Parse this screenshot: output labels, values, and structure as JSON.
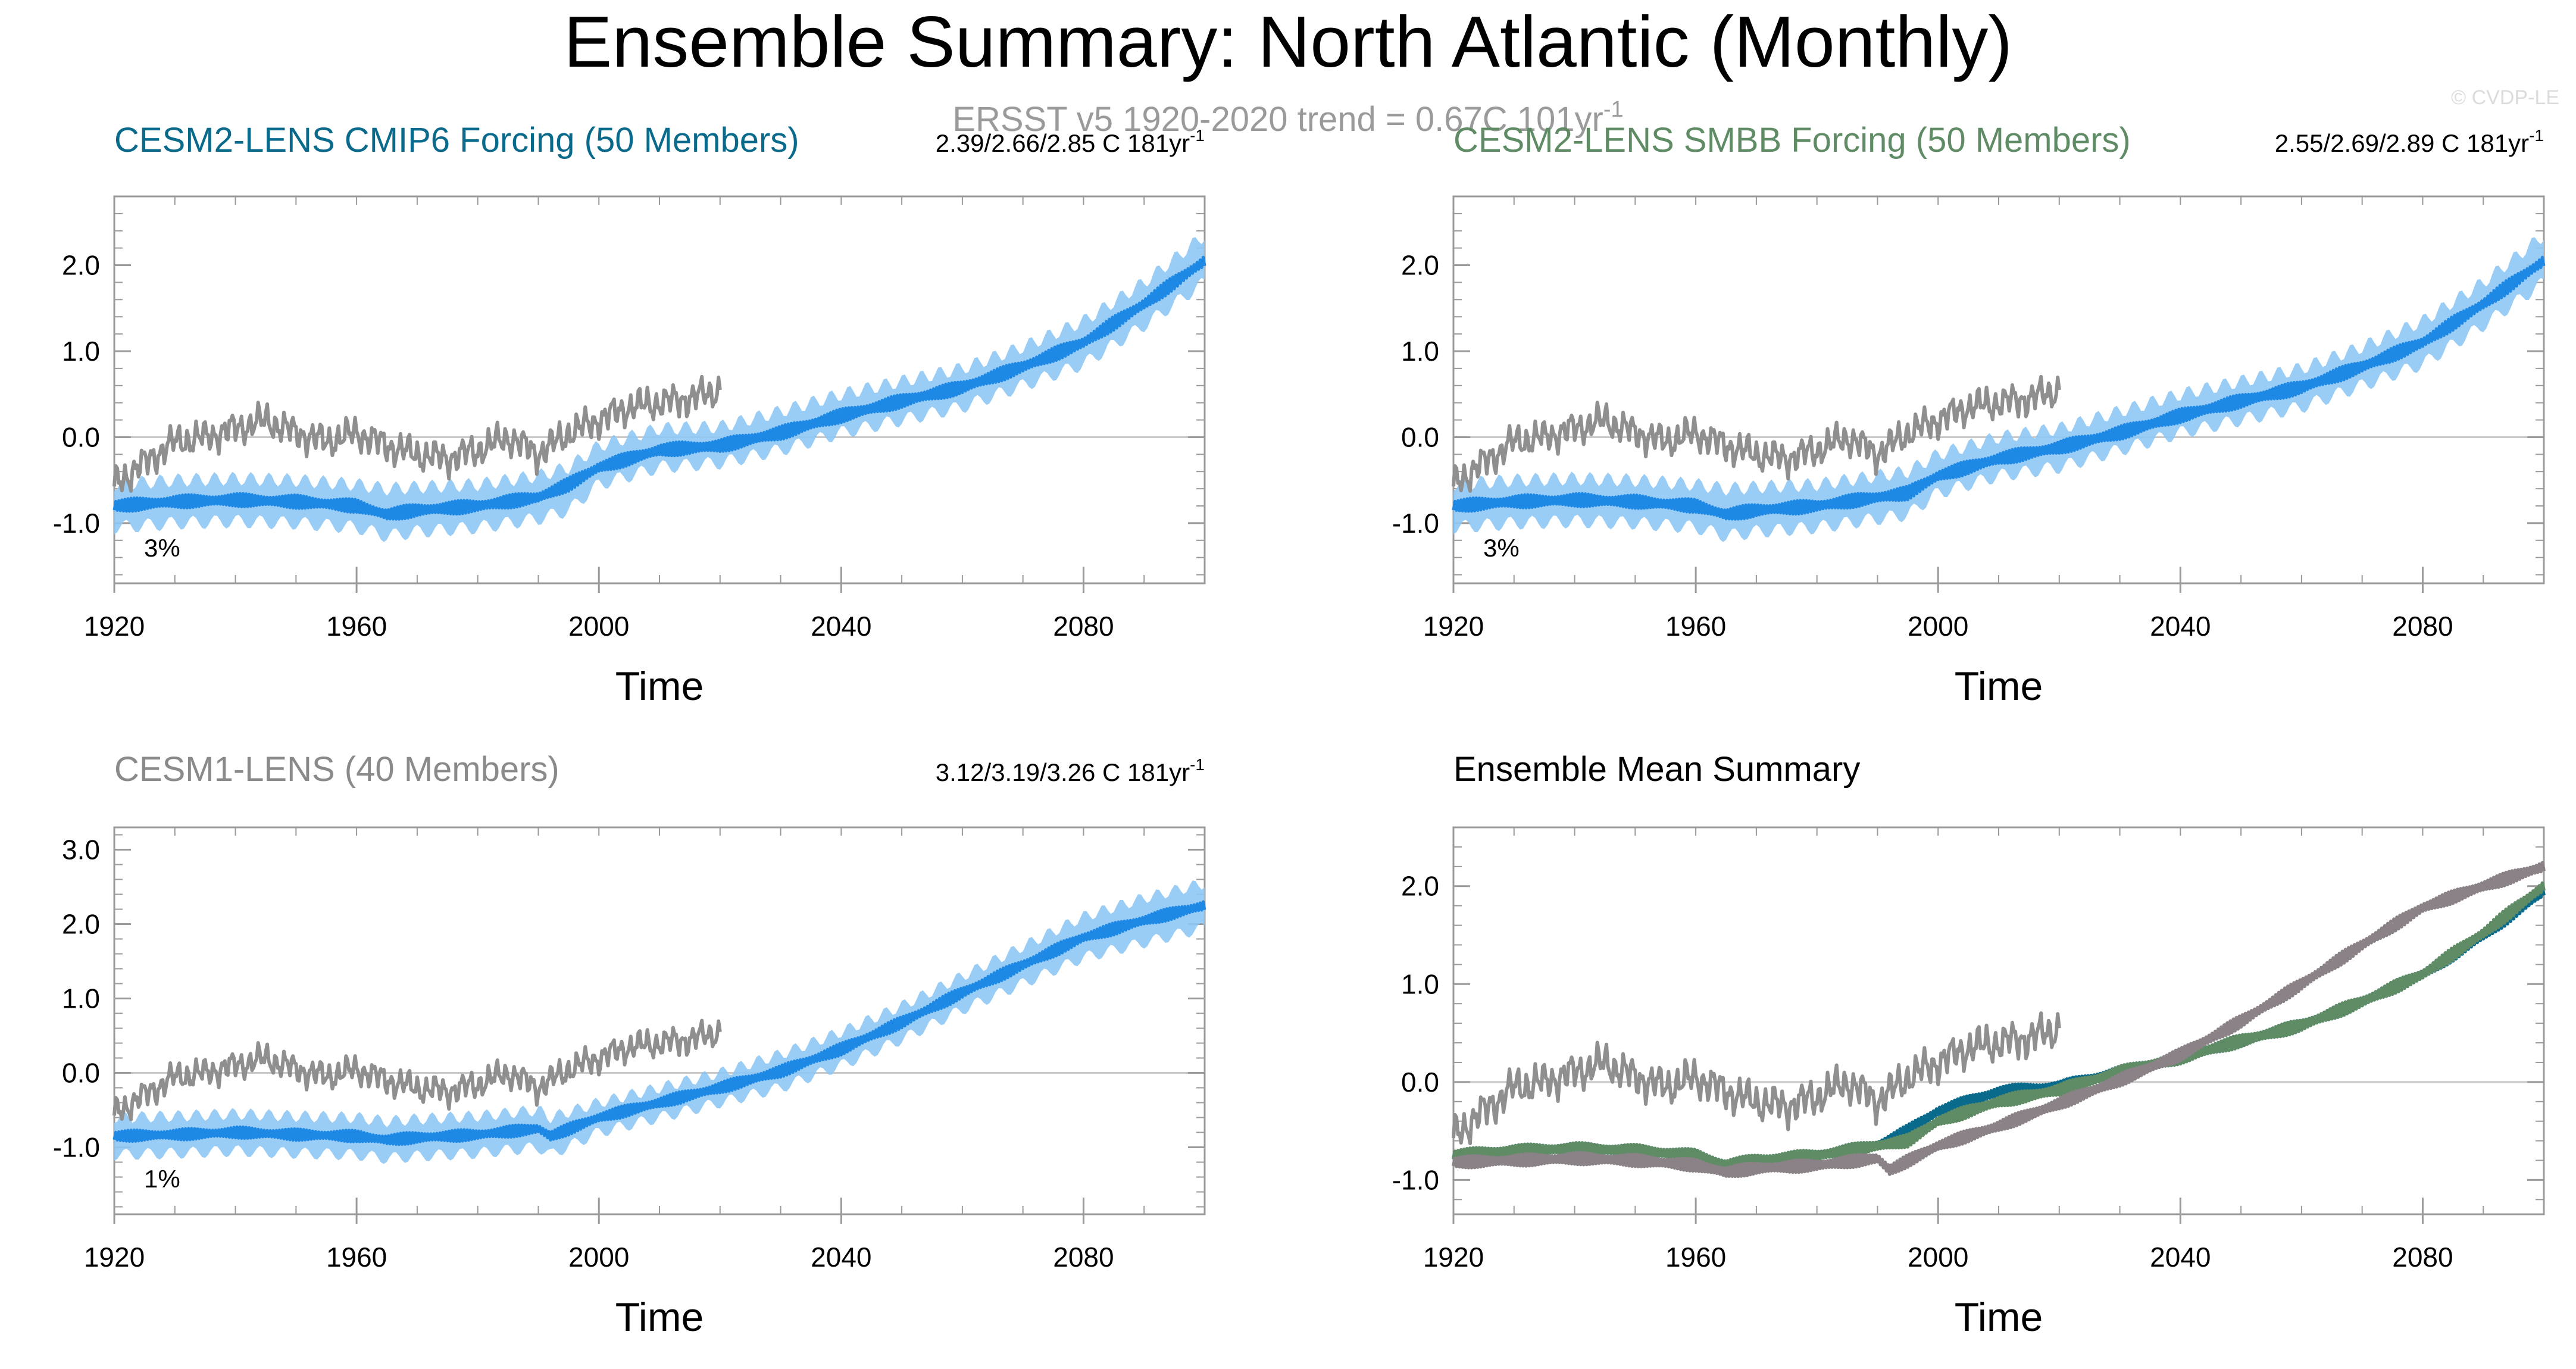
{
  "figure": {
    "title": "Ensemble Summary: North Atlantic (Monthly)",
    "subtitle": "ERSST v5 1920-2020 trend = 0.67C 101yr",
    "subtitle_sup": "-1",
    "watermark": "© CVDP-LE",
    "colors": {
      "ensemble_spread": "#8fc8f5",
      "ensemble_mean": "#1e88e5",
      "observations": "#8f8f8f",
      "cesm2_cmip6_title": "#0a6a8c",
      "cesm2_smbb_title": "#5f8c65",
      "cesm1_title": "#8a8a8a",
      "axis": "#9a9a9a",
      "zero_line": "#c8c8c8"
    }
  },
  "chart_data": [
    {
      "type": "line",
      "title": "CESM2-LENS CMIP6 Forcing (50 Members)",
      "trend_label": "2.39/2.66/2.85 C 181yr",
      "trend_sup": "-1",
      "percent_label": "3%",
      "xlabel": "Time",
      "ylabel": "",
      "xlim": [
        1920,
        2100
      ],
      "ylim": [
        -1.7,
        2.8
      ],
      "xticks": [
        "1920",
        "1960",
        "2000",
        "2040",
        "2080"
      ],
      "yticks": [
        "-1.0",
        "0.0",
        "1.0",
        "2.0"
      ],
      "ytick_values": [
        -1.0,
        0.0,
        1.0,
        2.0
      ],
      "series": [
        {
          "name": "Ensemble spread",
          "kind": "band",
          "x": [
            1920,
            1930,
            1940,
            1950,
            1960,
            1965,
            1970,
            1980,
            1990,
            1995,
            2000,
            2010,
            2020,
            2030,
            2040,
            2050,
            2060,
            2070,
            2080,
            2090,
            2100
          ],
          "lower": [
            -1.05,
            -1.0,
            -0.98,
            -1.0,
            -1.05,
            -1.15,
            -1.1,
            -1.05,
            -0.95,
            -0.85,
            -0.55,
            -0.35,
            -0.3,
            -0.15,
            0.05,
            0.2,
            0.35,
            0.6,
            0.85,
            1.3,
            1.8
          ],
          "upper": [
            -0.55,
            -0.5,
            -0.48,
            -0.5,
            -0.55,
            -0.6,
            -0.58,
            -0.55,
            -0.45,
            -0.35,
            -0.1,
            0.1,
            0.12,
            0.3,
            0.5,
            0.65,
            0.8,
            1.05,
            1.35,
            1.8,
            2.35
          ]
        },
        {
          "name": "Ensemble mean",
          "kind": "line",
          "x": [
            1920,
            1930,
            1940,
            1950,
            1960,
            1965,
            1970,
            1980,
            1990,
            1995,
            2000,
            2010,
            2020,
            2030,
            2040,
            2050,
            2060,
            2070,
            2080,
            2090,
            2100
          ],
          "y": [
            -0.8,
            -0.75,
            -0.73,
            -0.75,
            -0.8,
            -0.9,
            -0.85,
            -0.8,
            -0.7,
            -0.55,
            -0.35,
            -0.15,
            -0.1,
            0.05,
            0.25,
            0.42,
            0.58,
            0.82,
            1.1,
            1.55,
            2.05
          ]
        },
        {
          "name": "ERSST v5",
          "kind": "obs",
          "x": [
            1920,
            1925,
            1930,
            1935,
            1940,
            1945,
            1950,
            1955,
            1960,
            1965,
            1970,
            1975,
            1980,
            1985,
            1990,
            1995,
            2000,
            2005,
            2010,
            2015,
            2020
          ],
          "y": [
            -0.55,
            -0.3,
            -0.05,
            0.0,
            0.1,
            0.2,
            0.05,
            -0.05,
            0.05,
            -0.1,
            -0.2,
            -0.25,
            -0.15,
            0.0,
            -0.2,
            0.05,
            0.2,
            0.35,
            0.4,
            0.45,
            0.55
          ]
        }
      ]
    },
    {
      "type": "line",
      "title": "CESM2-LENS SMBB Forcing (50 Members)",
      "trend_label": "2.55/2.69/2.89 C 181yr",
      "trend_sup": "-1",
      "percent_label": "3%",
      "xlabel": "Time",
      "ylabel": "",
      "xlim": [
        1920,
        2100
      ],
      "ylim": [
        -1.7,
        2.8
      ],
      "xticks": [
        "1920",
        "1960",
        "2000",
        "2040",
        "2080"
      ],
      "yticks": [
        "-1.0",
        "0.0",
        "1.0",
        "2.0"
      ],
      "ytick_values": [
        -1.0,
        0.0,
        1.0,
        2.0
      ],
      "series": [
        {
          "name": "Ensemble spread",
          "kind": "band",
          "x": [
            1920,
            1930,
            1940,
            1950,
            1960,
            1965,
            1970,
            1980,
            1990,
            1995,
            2000,
            2010,
            2020,
            2030,
            2040,
            2050,
            2060,
            2070,
            2080,
            2090,
            2100
          ],
          "lower": [
            -1.05,
            -1.0,
            -0.98,
            -1.0,
            -1.05,
            -1.15,
            -1.1,
            -1.05,
            -0.95,
            -0.9,
            -0.65,
            -0.45,
            -0.35,
            -0.15,
            0.05,
            0.2,
            0.35,
            0.6,
            0.85,
            1.3,
            1.8
          ],
          "upper": [
            -0.55,
            -0.5,
            -0.48,
            -0.5,
            -0.55,
            -0.6,
            -0.58,
            -0.55,
            -0.45,
            -0.4,
            -0.2,
            0.0,
            0.1,
            0.3,
            0.5,
            0.65,
            0.8,
            1.05,
            1.35,
            1.8,
            2.35
          ]
        },
        {
          "name": "Ensemble mean",
          "kind": "line",
          "x": [
            1920,
            1930,
            1940,
            1950,
            1960,
            1965,
            1970,
            1980,
            1990,
            1995,
            2000,
            2010,
            2020,
            2030,
            2040,
            2050,
            2060,
            2070,
            2080,
            2090,
            2100
          ],
          "y": [
            -0.8,
            -0.75,
            -0.73,
            -0.75,
            -0.8,
            -0.9,
            -0.85,
            -0.8,
            -0.7,
            -0.65,
            -0.45,
            -0.25,
            -0.12,
            0.05,
            0.25,
            0.42,
            0.58,
            0.82,
            1.1,
            1.55,
            2.05
          ]
        },
        {
          "name": "ERSST v5",
          "kind": "obs",
          "x": [
            1920,
            1925,
            1930,
            1935,
            1940,
            1945,
            1950,
            1955,
            1960,
            1965,
            1970,
            1975,
            1980,
            1985,
            1990,
            1995,
            2000,
            2005,
            2010,
            2015,
            2020
          ],
          "y": [
            -0.55,
            -0.3,
            -0.05,
            0.0,
            0.1,
            0.2,
            0.05,
            -0.05,
            0.05,
            -0.1,
            -0.2,
            -0.25,
            -0.15,
            0.0,
            -0.2,
            0.05,
            0.2,
            0.35,
            0.4,
            0.45,
            0.55
          ]
        }
      ]
    },
    {
      "type": "line",
      "title": "CESM1-LENS (40 Members)",
      "trend_label": "3.12/3.19/3.26 C 181yr",
      "trend_sup": "-1",
      "percent_label": "1%",
      "xlabel": "Time",
      "ylabel": "",
      "xlim": [
        1920,
        2100
      ],
      "ylim": [
        -1.9,
        3.3
      ],
      "xticks": [
        "1920",
        "1960",
        "2000",
        "2040",
        "2080"
      ],
      "yticks": [
        "-1.0",
        "0.0",
        "1.0",
        "2.0",
        "3.0"
      ],
      "ytick_values": [
        -1.0,
        0.0,
        1.0,
        2.0,
        3.0
      ],
      "series": [
        {
          "name": "Ensemble spread",
          "kind": "band",
          "x": [
            1920,
            1930,
            1940,
            1950,
            1960,
            1965,
            1970,
            1980,
            1990,
            1992,
            2000,
            2010,
            2020,
            2030,
            2040,
            2050,
            2060,
            2070,
            2080,
            2090,
            2100
          ],
          "lower": [
            -1.1,
            -1.08,
            -1.05,
            -1.08,
            -1.1,
            -1.15,
            -1.12,
            -1.08,
            -1.0,
            -1.1,
            -0.8,
            -0.6,
            -0.4,
            -0.2,
            0.1,
            0.45,
            0.85,
            1.2,
            1.55,
            1.75,
            1.95
          ],
          "upper": [
            -0.6,
            -0.58,
            -0.55,
            -0.58,
            -0.6,
            -0.65,
            -0.62,
            -0.58,
            -0.5,
            -0.6,
            -0.4,
            -0.2,
            0.0,
            0.25,
            0.55,
            0.9,
            1.3,
            1.7,
            2.1,
            2.35,
            2.55
          ]
        },
        {
          "name": "Ensemble mean",
          "kind": "line",
          "x": [
            1920,
            1930,
            1940,
            1950,
            1960,
            1965,
            1970,
            1980,
            1990,
            1992,
            2000,
            2010,
            2020,
            2030,
            2040,
            2050,
            2060,
            2070,
            2080,
            2090,
            2100
          ],
          "y": [
            -0.85,
            -0.83,
            -0.8,
            -0.83,
            -0.85,
            -0.9,
            -0.87,
            -0.83,
            -0.75,
            -0.85,
            -0.6,
            -0.4,
            -0.2,
            0.02,
            0.32,
            0.68,
            1.08,
            1.45,
            1.82,
            2.05,
            2.25
          ]
        },
        {
          "name": "ERSST v5",
          "kind": "obs",
          "x": [
            1920,
            1925,
            1930,
            1935,
            1940,
            1945,
            1950,
            1955,
            1960,
            1965,
            1970,
            1975,
            1980,
            1985,
            1990,
            1995,
            2000,
            2005,
            2010,
            2015,
            2020
          ],
          "y": [
            -0.55,
            -0.3,
            -0.05,
            0.0,
            0.1,
            0.2,
            0.05,
            -0.05,
            0.05,
            -0.1,
            -0.2,
            -0.25,
            -0.15,
            0.0,
            -0.2,
            0.05,
            0.2,
            0.35,
            0.4,
            0.45,
            0.55
          ]
        }
      ]
    },
    {
      "type": "line",
      "title": "Ensemble Mean Summary",
      "trend_label": "",
      "trend_sup": "",
      "percent_label": "",
      "xlabel": "Time",
      "ylabel": "",
      "xlim": [
        1920,
        2100
      ],
      "ylim": [
        -1.35,
        2.6
      ],
      "xticks": [
        "1920",
        "1960",
        "2000",
        "2040",
        "2080"
      ],
      "yticks": [
        "-1.0",
        "0.0",
        "1.0",
        "2.0"
      ],
      "ytick_values": [
        -1.0,
        0.0,
        1.0,
        2.0
      ],
      "series": [
        {
          "name": "CESM2-LENS CMIP6",
          "kind": "mean",
          "color": "#0a6a8c",
          "x": [
            1920,
            1930,
            1940,
            1950,
            1960,
            1965,
            1970,
            1980,
            1990,
            1995,
            2000,
            2010,
            2020,
            2030,
            2040,
            2050,
            2060,
            2070,
            2080,
            2090,
            2100
          ],
          "y": [
            -0.75,
            -0.7,
            -0.68,
            -0.7,
            -0.75,
            -0.85,
            -0.8,
            -0.75,
            -0.65,
            -0.5,
            -0.3,
            -0.1,
            -0.05,
            0.1,
            0.25,
            0.42,
            0.58,
            0.82,
            1.1,
            1.5,
            1.95
          ]
        },
        {
          "name": "CESM2-LENS SMBB",
          "kind": "mean",
          "color": "#5f8c65",
          "x": [
            1920,
            1930,
            1940,
            1950,
            1960,
            1965,
            1970,
            1980,
            1990,
            1995,
            2000,
            2010,
            2020,
            2030,
            2040,
            2050,
            2060,
            2070,
            2080,
            2090,
            2100
          ],
          "y": [
            -0.75,
            -0.7,
            -0.68,
            -0.7,
            -0.75,
            -0.85,
            -0.8,
            -0.75,
            -0.65,
            -0.6,
            -0.4,
            -0.2,
            -0.08,
            0.1,
            0.25,
            0.42,
            0.58,
            0.82,
            1.1,
            1.52,
            2.0
          ]
        },
        {
          "name": "CESM1-LENS",
          "kind": "mean",
          "color": "#8a8287",
          "x": [
            1920,
            1930,
            1940,
            1950,
            1960,
            1965,
            1970,
            1980,
            1990,
            1992,
            2000,
            2010,
            2020,
            2030,
            2040,
            2050,
            2060,
            2070,
            2080,
            2090,
            2100
          ],
          "y": [
            -0.82,
            -0.8,
            -0.78,
            -0.8,
            -0.85,
            -0.92,
            -0.88,
            -0.85,
            -0.78,
            -0.9,
            -0.65,
            -0.45,
            -0.22,
            0.02,
            0.28,
            0.62,
            1.0,
            1.4,
            1.78,
            2.0,
            2.2
          ]
        },
        {
          "name": "ERSST v5",
          "kind": "obs",
          "color": "#8f8f8f",
          "x": [
            1920,
            1925,
            1930,
            1935,
            1940,
            1945,
            1950,
            1955,
            1960,
            1965,
            1970,
            1975,
            1980,
            1985,
            1990,
            1995,
            2000,
            2005,
            2010,
            2015,
            2020
          ],
          "y": [
            -0.55,
            -0.3,
            -0.05,
            0.0,
            0.1,
            0.2,
            0.05,
            -0.05,
            0.05,
            -0.1,
            -0.2,
            -0.25,
            -0.15,
            0.0,
            -0.2,
            0.05,
            0.2,
            0.35,
            0.4,
            0.45,
            0.55
          ]
        }
      ]
    }
  ]
}
